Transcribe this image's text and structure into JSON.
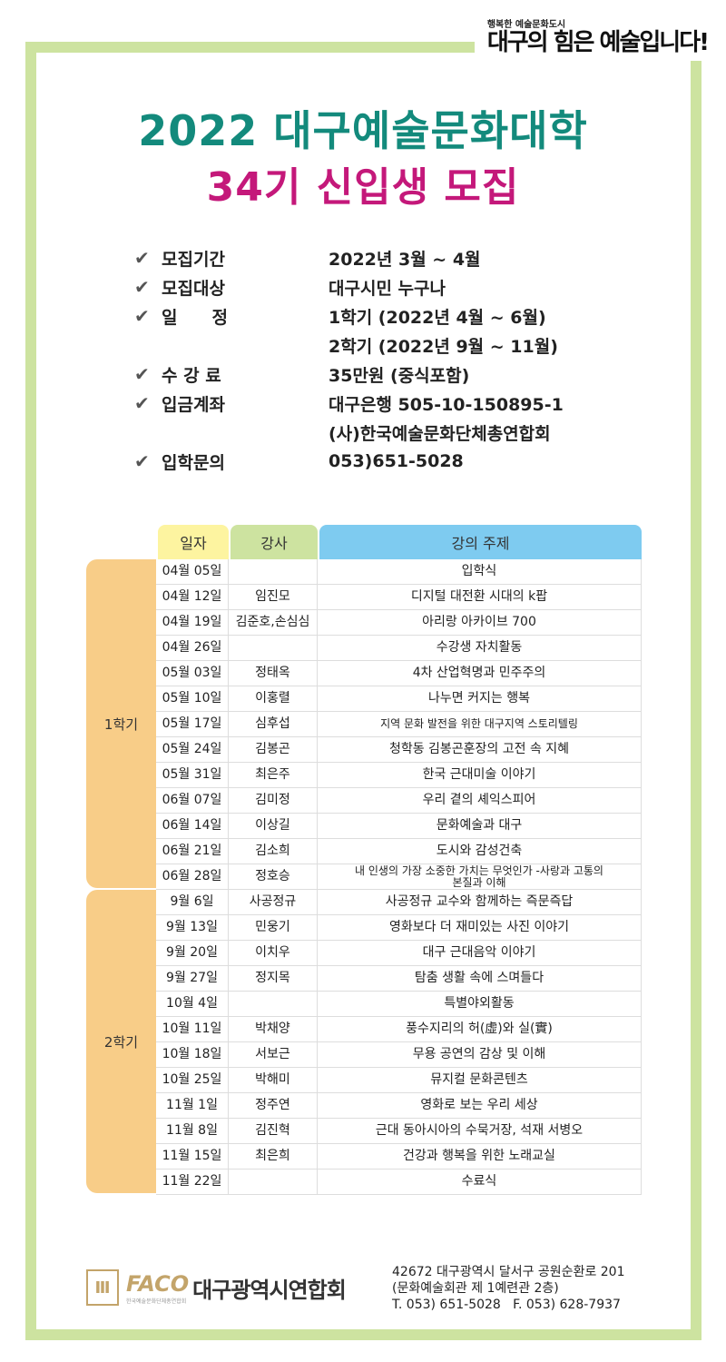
{
  "banner": {
    "subtitle": "행복한 예술문화도시",
    "slogan": "대구의 힘은 예술입니다!"
  },
  "title": {
    "line1": "2022 대구예술문화대학",
    "line2": "34기 신입생 모집"
  },
  "info": [
    {
      "label": "모집기간",
      "value": "2022년 3월 ~ 4월"
    },
    {
      "label": "모집대상",
      "value": "대구시민 누구나"
    },
    {
      "label": "일　　정",
      "value": "1학기 (2022년 4월 ~ 6월)"
    },
    {
      "label": "",
      "value": "2학기 (2022년 9월 ~ 11월)"
    },
    {
      "label": "수 강 료",
      "value": "35만원 (중식포함)"
    },
    {
      "label": "입금계좌",
      "value": "대구은행 505-10-150895-1"
    },
    {
      "label": "",
      "value": "(사)한국예술문화단체총연합회"
    },
    {
      "label": "입학문의",
      "value": "053)651-5028"
    }
  ],
  "colors": {
    "header_date": "#fdf4a0",
    "header_instructor": "#cde3a0",
    "header_topic": "#7ecbf0",
    "semester": "#f8cd88",
    "frame": "#cde3a0",
    "title1": "#138a7c",
    "title2": "#c4187a"
  },
  "table": {
    "headers": [
      "일자",
      "강사",
      "강의 주제"
    ],
    "semesters": [
      {
        "name": "1학기",
        "rows": [
          [
            "04월 05일",
            "",
            "입학식"
          ],
          [
            "04월 12일",
            "임진모",
            "디지털 대전환 시대의 k팝"
          ],
          [
            "04월 19일",
            "김준호,손심심",
            "아리랑 아카이브 700"
          ],
          [
            "04월 26일",
            "",
            "수강생 자치활동"
          ],
          [
            "05월 03일",
            "정태옥",
            "4차 산업혁명과 민주주의"
          ],
          [
            "05월 10일",
            "이홍렬",
            "나누면 커지는 행복"
          ],
          [
            "05월 17일",
            "심후섭",
            "지역 문화 발전을 위한 대구지역 스토리텔링"
          ],
          [
            "05월 24일",
            "김봉곤",
            "청학동 김봉곤훈장의 고전 속 지혜"
          ],
          [
            "05월 31일",
            "최은주",
            "한국 근대미술 이야기"
          ],
          [
            "06월 07일",
            "김미정",
            "우리 곁의 셰익스피어"
          ],
          [
            "06월 14일",
            "이상길",
            "문화예술과 대구"
          ],
          [
            "06월 21일",
            "김소희",
            "도시와 감성건축"
          ],
          [
            "06월 28일",
            "정호승",
            "내 인생의 가장 소중한 가치는 무엇인가 -사랑과 고통의 본질과 이해"
          ]
        ]
      },
      {
        "name": "2학기",
        "rows": [
          [
            "9월 6일",
            "사공정규",
            "사공정규 교수와 함께하는 즉문즉답"
          ],
          [
            "9월 13일",
            "민웅기",
            "영화보다 더 재미있는 사진 이야기"
          ],
          [
            "9월 20일",
            "이치우",
            "대구 근대음악 이야기"
          ],
          [
            "9월 27일",
            "정지목",
            "탐춤 생활 속에 스며들다"
          ],
          [
            "10월 4일",
            "",
            "특별야외활동"
          ],
          [
            "10월 11일",
            "박채양",
            "풍수지리의 허(虛)와 실(實)"
          ],
          [
            "10월 18일",
            "서보근",
            "무용 공연의 감상 및 이해"
          ],
          [
            "10월 25일",
            "박해미",
            "뮤지컬 문화콘텐츠"
          ],
          [
            "11월 1일",
            "정주연",
            "영화로 보는 우리 세상"
          ],
          [
            "11월 8일",
            "김진혁",
            "근대 동아시아의 수묵거장, 석재 서병오"
          ],
          [
            "11월 15일",
            "최은희",
            "건강과 행복을 위한 노래교실"
          ],
          [
            "11월 22일",
            "",
            "수료식"
          ]
        ]
      }
    ]
  },
  "footer": {
    "logo_text": "FACO",
    "org": "대구광역시연합회",
    "logo_sub": "한국예술문화단체총연합회",
    "address1": "42672 대구광역시 달서구 공원순환로 201",
    "address2": "(문화예술회관 제 1예련관 2층)",
    "phone": "T. 053) 651-5028   F. 053) 628-7937"
  }
}
